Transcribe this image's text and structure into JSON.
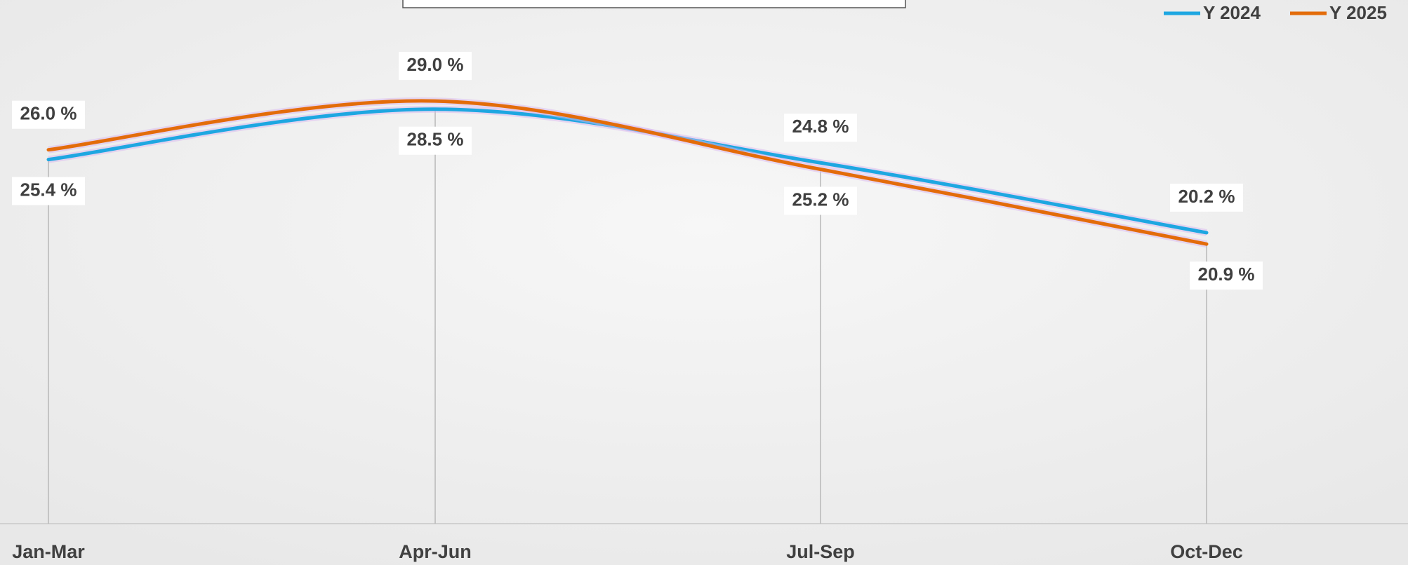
{
  "chart_data": {
    "type": "line",
    "categories": [
      "Jan-Mar",
      "Apr-Jun",
      "Jul-Sep",
      "Oct-Dec"
    ],
    "series": [
      {
        "name": "Y 2024",
        "color": "#1ea7e1",
        "values": [
          25.4,
          28.5,
          25.2,
          20.9
        ],
        "value_labels": [
          "25.4 %",
          "28.5 %",
          "25.2 %",
          "20.9 %"
        ]
      },
      {
        "name": "Y 2025",
        "color": "#e36c0a",
        "values": [
          26.0,
          29.0,
          24.8,
          20.2
        ],
        "value_labels": [
          "26.0 %",
          "29.0 %",
          "24.8 %",
          "20.2 %"
        ]
      }
    ],
    "ylim": [
      3,
      35
    ],
    "smooth": true,
    "legend": "top-right"
  }
}
